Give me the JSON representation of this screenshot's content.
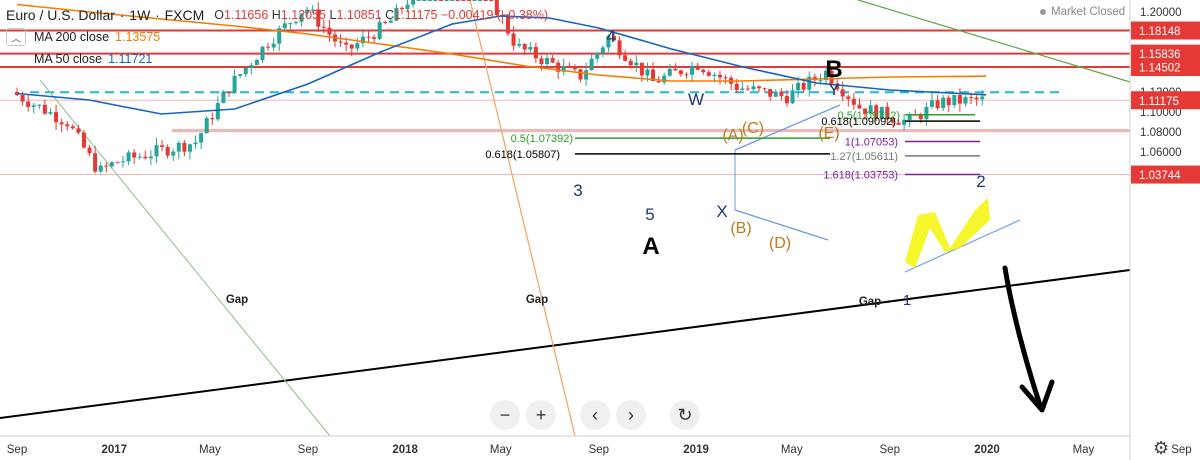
{
  "header": {
    "symbol": "Euro / U.S. Dollar",
    "interval": "1W",
    "exchange": "FXCM",
    "open_label": "O",
    "open": "1.11656",
    "high_label": "H",
    "high": "1.12055",
    "low_label": "L",
    "low": "1.10851",
    "close_label": "C",
    "close": "1.11175",
    "change": "−0.00419 (−0.38%)",
    "market_status": "Market Closed"
  },
  "indicators": [
    {
      "label": "MA 200 close",
      "value": "1.13575",
      "color": "#f57c00"
    },
    {
      "label": "MA 50 close",
      "value": "1.11721",
      "color": "#1565c0"
    }
  ],
  "colors": {
    "up": "#26a69a",
    "down": "#e53935",
    "resistance": "#e53935",
    "support_dashed": "#26b5d0",
    "gap_zone": "#e8a0a0",
    "highlight": "#f5f50a"
  },
  "icons": {
    "toggle": "chevron-up-icon",
    "zoom_out": "minus-icon",
    "zoom_in": "plus-icon",
    "scroll_left": "chevron-left-icon",
    "scroll_right": "chevron-right-icon",
    "reset": "reset-icon",
    "settings": "gear-icon",
    "status_dot": "status-dot-icon"
  },
  "toolbar": {
    "zoom_out": "−",
    "zoom_in": "+",
    "left": "‹",
    "right": "›",
    "reset": "↻"
  },
  "settings_glyph": "⚙",
  "chart_data": {
    "type": "candlestick",
    "y_axis": {
      "min": 1.0325,
      "max": 1.2082,
      "ticks": [
        "1.20000",
        "1.18000",
        "1.16000",
        "1.14000",
        "1.12000",
        "1.10000",
        "1.08000",
        "1.06000",
        "1.04000"
      ],
      "position": "right"
    },
    "x_axis": {
      "labels": [
        "Sep",
        "2017",
        "May",
        "Sep",
        "2018",
        "May",
        "Sep",
        "2019",
        "May",
        "Sep",
        "2020",
        "May",
        "Sep"
      ],
      "bold": [
        "2017",
        "2018",
        "2019",
        "2020"
      ]
    },
    "price_labels": [
      {
        "value": "1.18148",
        "price": 1.18148
      },
      {
        "value": "1.15836",
        "price": 1.15836
      },
      {
        "value": "1.14502",
        "price": 1.14502
      },
      {
        "value": "1.11175",
        "price": 1.11175
      },
      {
        "value": "1.03744",
        "price": 1.03744
      }
    ],
    "resistance_levels": [
      1.18148,
      1.15836,
      1.14502
    ],
    "support_dashed": 1.1197,
    "gap_zone": {
      "top": 1.083,
      "bottom": 1.0798,
      "label": "Gap"
    },
    "gap_labels": [
      "Gap",
      "Gap",
      "Gap"
    ],
    "fib_levels": [
      {
        "label": "0.5(1.09722)",
        "price": 1.09722,
        "color": "#2e9e2e"
      },
      {
        "label": "0.618(1.09092)",
        "price": 1.09092,
        "color": "#000000"
      },
      {
        "label": "0.5(1.07392)",
        "price": 1.07392,
        "color": "#2e9e2e"
      },
      {
        "label": "1(1.07053)",
        "price": 1.07053,
        "color": "#7b1fa2"
      },
      {
        "label": "0.618(1.05807)",
        "price": 1.05807,
        "color": "#000000"
      },
      {
        "label": "1.27(1.05611)",
        "price": 1.05611,
        "color": "#777777"
      },
      {
        "label": "1.618(1.03753)",
        "price": 1.03753,
        "color": "#7b1fa2"
      }
    ],
    "wave_labels": [
      {
        "text": "4",
        "color": "#1a3a6e"
      },
      {
        "text": "W",
        "color": "#1a3a6e"
      },
      {
        "text": "3",
        "color": "#1a3a6e"
      },
      {
        "text": "5",
        "color": "#1a3a6e"
      },
      {
        "text": "X",
        "color": "#1a3a6e"
      },
      {
        "text": "Y",
        "color": "#1a3a6e"
      },
      {
        "text": "B",
        "color": "#000000"
      },
      {
        "text": "A",
        "color": "#000000"
      },
      {
        "text": "(A)",
        "color": "#c07a1a"
      },
      {
        "text": "(C)",
        "color": "#c07a1a"
      },
      {
        "text": "(E)",
        "color": "#c07a1a"
      },
      {
        "text": "(B)",
        "color": "#c07a1a"
      },
      {
        "text": "(D)",
        "color": "#c07a1a"
      },
      {
        "text": "2",
        "color": "#1a3a6e"
      },
      {
        "text": "1",
        "color": "#1a3a6e"
      }
    ],
    "series": [
      {
        "name": "MA 200 close",
        "color": "#f57c00",
        "x": [
          "2016-09-01",
          "2016-12-01",
          "2017-03-01",
          "2017-06-01",
          "2017-09-01",
          "2017-12-01",
          "2018-03-01",
          "2018-06-01",
          "2018-09-01",
          "2018-12-01",
          "2019-03-01",
          "2019-06-01",
          "2019-09-01",
          "2019-12-31"
        ],
        "values": [
          1.2075,
          1.2,
          1.193,
          1.186,
          1.178,
          1.168,
          1.158,
          1.146,
          1.137,
          1.131,
          1.131,
          1.133,
          1.135,
          1.1358
        ]
      },
      {
        "name": "MA 50 close",
        "color": "#1565c0",
        "x": [
          "2016-09-01",
          "2016-12-01",
          "2017-03-01",
          "2017-06-01",
          "2017-09-01",
          "2017-12-01",
          "2018-03-01",
          "2018-05-01",
          "2018-07-01",
          "2018-09-01",
          "2018-12-01",
          "2019-03-01",
          "2019-06-01",
          "2019-09-01",
          "2019-12-31"
        ],
        "values": [
          1.1185,
          1.112,
          1.098,
          1.103,
          1.128,
          1.16,
          1.188,
          1.196,
          1.194,
          1.184,
          1.163,
          1.145,
          1.129,
          1.122,
          1.1172
        ]
      }
    ]
  }
}
